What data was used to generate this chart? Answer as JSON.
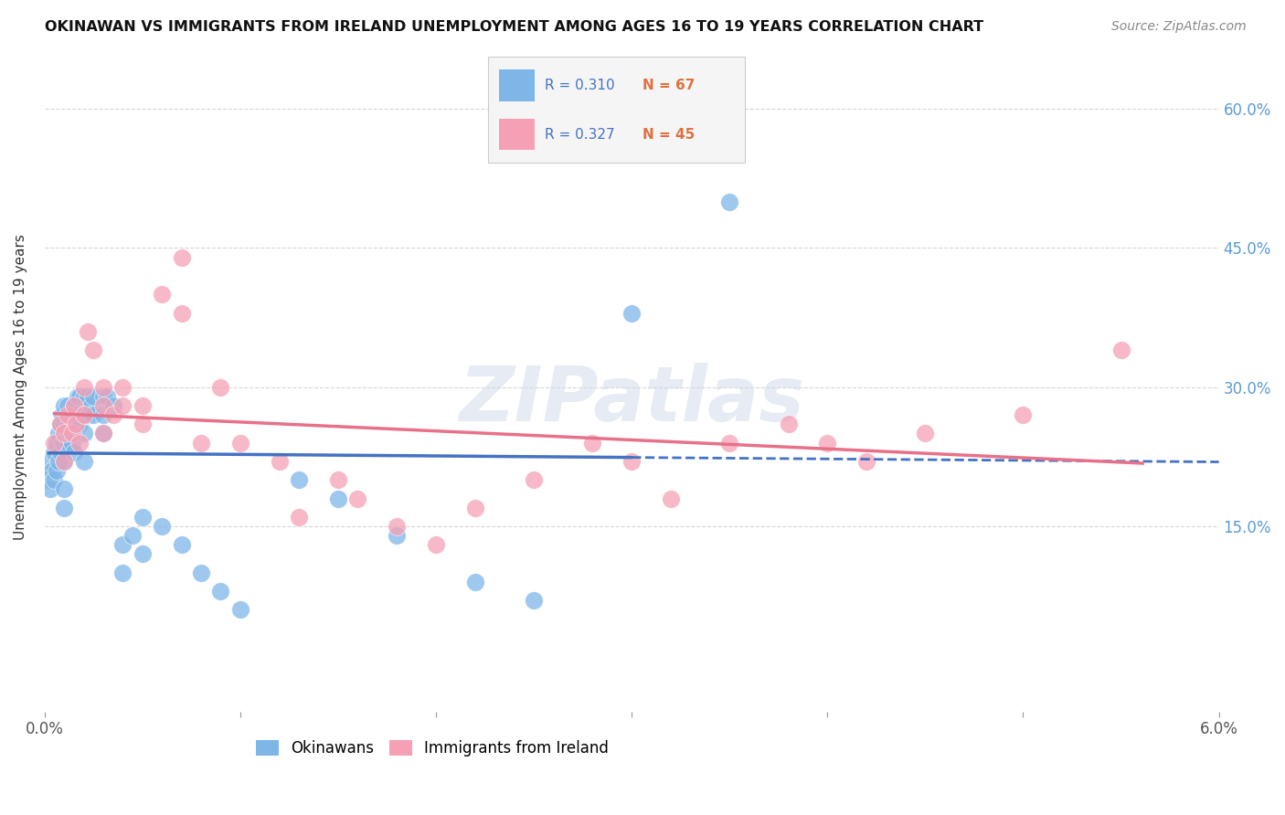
{
  "title": "OKINAWAN VS IMMIGRANTS FROM IRELAND UNEMPLOYMENT AMONG AGES 16 TO 19 YEARS CORRELATION CHART",
  "source": "Source: ZipAtlas.com",
  "ylabel": "Unemployment Among Ages 16 to 19 years",
  "ytick_values": [
    0.15,
    0.3,
    0.45,
    0.6
  ],
  "ytick_labels": [
    "15.0%",
    "30.0%",
    "45.0%",
    "60.0%"
  ],
  "xlim": [
    0.0,
    0.06
  ],
  "ylim": [
    -0.05,
    0.65
  ],
  "okinawan_color": "#7EB6E8",
  "ireland_color": "#F5A0B5",
  "okinawan_line_color": "#4472C4",
  "ireland_line_color": "#E8718A",
  "legend_text_color": "#4472C4",
  "legend_n_color": "#E07040",
  "R_okinawan": 0.31,
  "N_okinawan": 67,
  "R_ireland": 0.327,
  "N_ireland": 45,
  "watermark": "ZIPatlas",
  "okinawan_x": [
    0.0002,
    0.0003,
    0.0003,
    0.0004,
    0.0005,
    0.0005,
    0.0006,
    0.0006,
    0.0007,
    0.0007,
    0.0008,
    0.0008,
    0.0009,
    0.0009,
    0.001,
    0.001,
    0.001,
    0.001,
    0.001,
    0.001,
    0.0012,
    0.0012,
    0.0012,
    0.0013,
    0.0013,
    0.0014,
    0.0014,
    0.0015,
    0.0015,
    0.0015,
    0.0016,
    0.0016,
    0.0017,
    0.0017,
    0.0018,
    0.0018,
    0.002,
    0.002,
    0.002,
    0.002,
    0.0022,
    0.0022,
    0.0024,
    0.0025,
    0.0025,
    0.003,
    0.003,
    0.003,
    0.0032,
    0.0035,
    0.004,
    0.004,
    0.0045,
    0.005,
    0.005,
    0.006,
    0.007,
    0.008,
    0.009,
    0.01,
    0.013,
    0.015,
    0.018,
    0.022,
    0.025,
    0.03,
    0.035
  ],
  "okinawan_y": [
    0.2,
    0.22,
    0.19,
    0.21,
    0.23,
    0.2,
    0.24,
    0.21,
    0.25,
    0.22,
    0.26,
    0.23,
    0.27,
    0.24,
    0.28,
    0.26,
    0.24,
    0.22,
    0.19,
    0.17,
    0.28,
    0.26,
    0.24,
    0.27,
    0.25,
    0.27,
    0.24,
    0.28,
    0.26,
    0.23,
    0.28,
    0.26,
    0.29,
    0.27,
    0.29,
    0.26,
    0.29,
    0.27,
    0.25,
    0.22,
    0.29,
    0.27,
    0.28,
    0.29,
    0.27,
    0.29,
    0.27,
    0.25,
    0.29,
    0.28,
    0.13,
    0.1,
    0.14,
    0.16,
    0.12,
    0.15,
    0.13,
    0.1,
    0.08,
    0.06,
    0.2,
    0.18,
    0.14,
    0.09,
    0.07,
    0.38,
    0.5
  ],
  "ireland_x": [
    0.0005,
    0.0008,
    0.001,
    0.001,
    0.0012,
    0.0014,
    0.0015,
    0.0016,
    0.0018,
    0.002,
    0.002,
    0.0022,
    0.0025,
    0.003,
    0.003,
    0.003,
    0.0035,
    0.004,
    0.004,
    0.005,
    0.005,
    0.006,
    0.007,
    0.007,
    0.008,
    0.009,
    0.01,
    0.012,
    0.013,
    0.015,
    0.016,
    0.018,
    0.02,
    0.022,
    0.025,
    0.028,
    0.03,
    0.032,
    0.035,
    0.038,
    0.04,
    0.042,
    0.045,
    0.05,
    0.055
  ],
  "ireland_y": [
    0.24,
    0.26,
    0.25,
    0.22,
    0.27,
    0.25,
    0.28,
    0.26,
    0.24,
    0.3,
    0.27,
    0.36,
    0.34,
    0.3,
    0.28,
    0.25,
    0.27,
    0.3,
    0.28,
    0.28,
    0.26,
    0.4,
    0.44,
    0.38,
    0.24,
    0.3,
    0.24,
    0.22,
    0.16,
    0.2,
    0.18,
    0.15,
    0.13,
    0.17,
    0.2,
    0.24,
    0.22,
    0.18,
    0.24,
    0.26,
    0.24,
    0.22,
    0.25,
    0.27,
    0.34
  ]
}
